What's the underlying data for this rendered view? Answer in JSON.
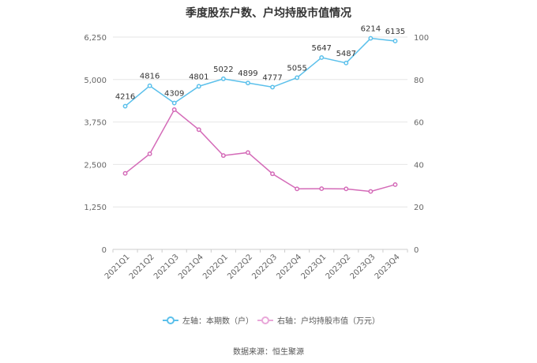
{
  "chart_data": {
    "type": "line",
    "title": "季度股东户数、户均持股市值情况",
    "categories": [
      "2021Q1",
      "2021Q2",
      "2021Q3",
      "2021Q4",
      "2022Q1",
      "2022Q2",
      "2022Q3",
      "2022Q4",
      "2023Q1",
      "2023Q2",
      "2023Q3",
      "2023Q4"
    ],
    "left_axis": {
      "min": 0,
      "max": 6250,
      "ticks": [
        "0",
        "1,250",
        "2,500",
        "3,750",
        "5,000",
        "6,250"
      ]
    },
    "right_axis": {
      "min": 0,
      "max": 100,
      "ticks": [
        "0",
        "20",
        "40",
        "60",
        "80",
        "100"
      ]
    },
    "series": [
      {
        "name": "左轴：本期数（户）",
        "axis": "left",
        "color": "#5bc0eb",
        "values": [
          4216,
          4816,
          4309,
          4801,
          5022,
          4899,
          4777,
          5055,
          5647,
          5487,
          6214,
          6135
        ],
        "labels": [
          "4216",
          "4816",
          "4309",
          "4801",
          "5022",
          "4899",
          "4777",
          "5055",
          "5647",
          "5487",
          "6214",
          "6135"
        ]
      },
      {
        "name": "右轴：户均持股市值（万元）",
        "axis": "right",
        "color": "#d46bb8",
        "values": [
          35.8,
          45.0,
          65.8,
          56.4,
          44.2,
          45.6,
          35.6,
          28.5,
          28.6,
          28.5,
          27.3,
          30.5
        ]
      }
    ],
    "grid": true,
    "legend_position": "bottom"
  },
  "source": "数据来源：恒生聚源"
}
